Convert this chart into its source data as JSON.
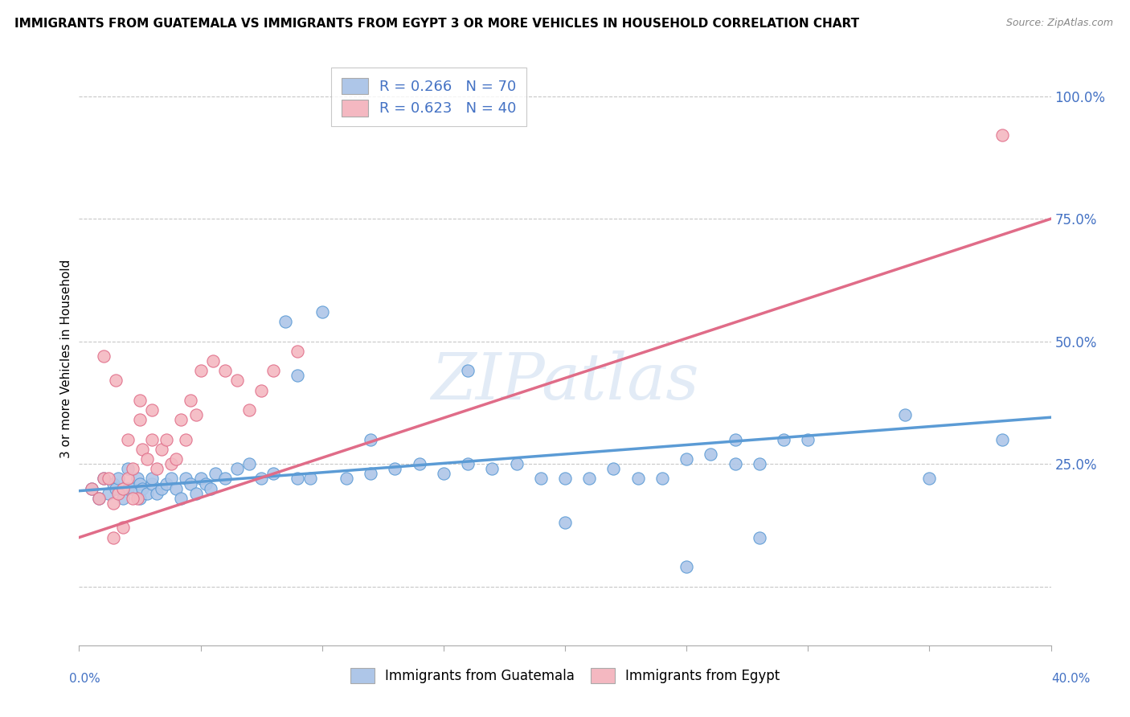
{
  "title": "IMMIGRANTS FROM GUATEMALA VS IMMIGRANTS FROM EGYPT 3 OR MORE VEHICLES IN HOUSEHOLD CORRELATION CHART",
  "source": "Source: ZipAtlas.com",
  "ylabel": "3 or more Vehicles in Household",
  "ytick_vals": [
    0.0,
    0.25,
    0.5,
    0.75,
    1.0
  ],
  "ytick_labels": [
    "",
    "25.0%",
    "50.0%",
    "75.0%",
    "100.0%"
  ],
  "xlim": [
    0.0,
    0.4
  ],
  "ylim": [
    -0.12,
    1.05
  ],
  "legend_items": [
    {
      "label": "R = 0.266   N = 70",
      "color": "#aec6e8"
    },
    {
      "label": "R = 0.623   N = 40",
      "color": "#f4b8c1"
    }
  ],
  "guatemala_scatter_x": [
    0.005,
    0.008,
    0.01,
    0.012,
    0.014,
    0.015,
    0.016,
    0.018,
    0.02,
    0.02,
    0.022,
    0.024,
    0.025,
    0.025,
    0.026,
    0.028,
    0.03,
    0.03,
    0.032,
    0.034,
    0.036,
    0.038,
    0.04,
    0.042,
    0.044,
    0.046,
    0.048,
    0.05,
    0.052,
    0.054,
    0.056,
    0.06,
    0.065,
    0.07,
    0.075,
    0.08,
    0.085,
    0.09,
    0.095,
    0.1,
    0.11,
    0.12,
    0.13,
    0.14,
    0.15,
    0.16,
    0.17,
    0.18,
    0.19,
    0.2,
    0.21,
    0.22,
    0.23,
    0.24,
    0.25,
    0.26,
    0.27,
    0.28,
    0.29,
    0.3,
    0.16,
    0.09,
    0.12,
    0.27,
    0.34,
    0.38,
    0.2,
    0.25,
    0.35,
    0.28
  ],
  "guatemala_scatter_y": [
    0.2,
    0.18,
    0.22,
    0.19,
    0.21,
    0.2,
    0.22,
    0.18,
    0.2,
    0.24,
    0.2,
    0.22,
    0.18,
    0.21,
    0.2,
    0.19,
    0.21,
    0.22,
    0.19,
    0.2,
    0.21,
    0.22,
    0.2,
    0.18,
    0.22,
    0.21,
    0.19,
    0.22,
    0.21,
    0.2,
    0.23,
    0.22,
    0.24,
    0.25,
    0.22,
    0.23,
    0.54,
    0.43,
    0.22,
    0.56,
    0.22,
    0.23,
    0.24,
    0.25,
    0.23,
    0.25,
    0.24,
    0.25,
    0.22,
    0.22,
    0.22,
    0.24,
    0.22,
    0.22,
    0.26,
    0.27,
    0.25,
    0.25,
    0.3,
    0.3,
    0.44,
    0.22,
    0.3,
    0.3,
    0.35,
    0.3,
    0.13,
    0.04,
    0.22,
    0.1
  ],
  "egypt_scatter_x": [
    0.005,
    0.008,
    0.01,
    0.012,
    0.014,
    0.016,
    0.018,
    0.02,
    0.022,
    0.024,
    0.026,
    0.028,
    0.03,
    0.032,
    0.034,
    0.036,
    0.038,
    0.04,
    0.042,
    0.044,
    0.046,
    0.048,
    0.05,
    0.055,
    0.06,
    0.065,
    0.07,
    0.075,
    0.08,
    0.09,
    0.025,
    0.02,
    0.015,
    0.01,
    0.03,
    0.025,
    0.022,
    0.018,
    0.014,
    0.38
  ],
  "egypt_scatter_y": [
    0.2,
    0.18,
    0.22,
    0.22,
    0.17,
    0.19,
    0.2,
    0.22,
    0.24,
    0.18,
    0.28,
    0.26,
    0.3,
    0.24,
    0.28,
    0.3,
    0.25,
    0.26,
    0.34,
    0.3,
    0.38,
    0.35,
    0.44,
    0.46,
    0.44,
    0.42,
    0.36,
    0.4,
    0.44,
    0.48,
    0.38,
    0.3,
    0.42,
    0.47,
    0.36,
    0.34,
    0.18,
    0.12,
    0.1,
    0.92
  ],
  "guatemala_line_x": [
    0.0,
    0.4
  ],
  "guatemala_line_y": [
    0.195,
    0.345
  ],
  "egypt_line_x": [
    0.0,
    0.4
  ],
  "egypt_line_y": [
    0.1,
    0.75
  ],
  "scatter_size": 120,
  "guatemala_color": "#aec6e8",
  "egypt_color": "#f4b8c1",
  "guatemala_line_color": "#5b9bd5",
  "egypt_line_color": "#e06c88",
  "watermark_text": "ZIPatlas",
  "bottom_legend_labels": [
    "Immigrants from Guatemala",
    "Immigrants from Egypt"
  ],
  "background_color": "#ffffff",
  "grid_color": "#c8c8c8",
  "tick_color": "#4472c4"
}
